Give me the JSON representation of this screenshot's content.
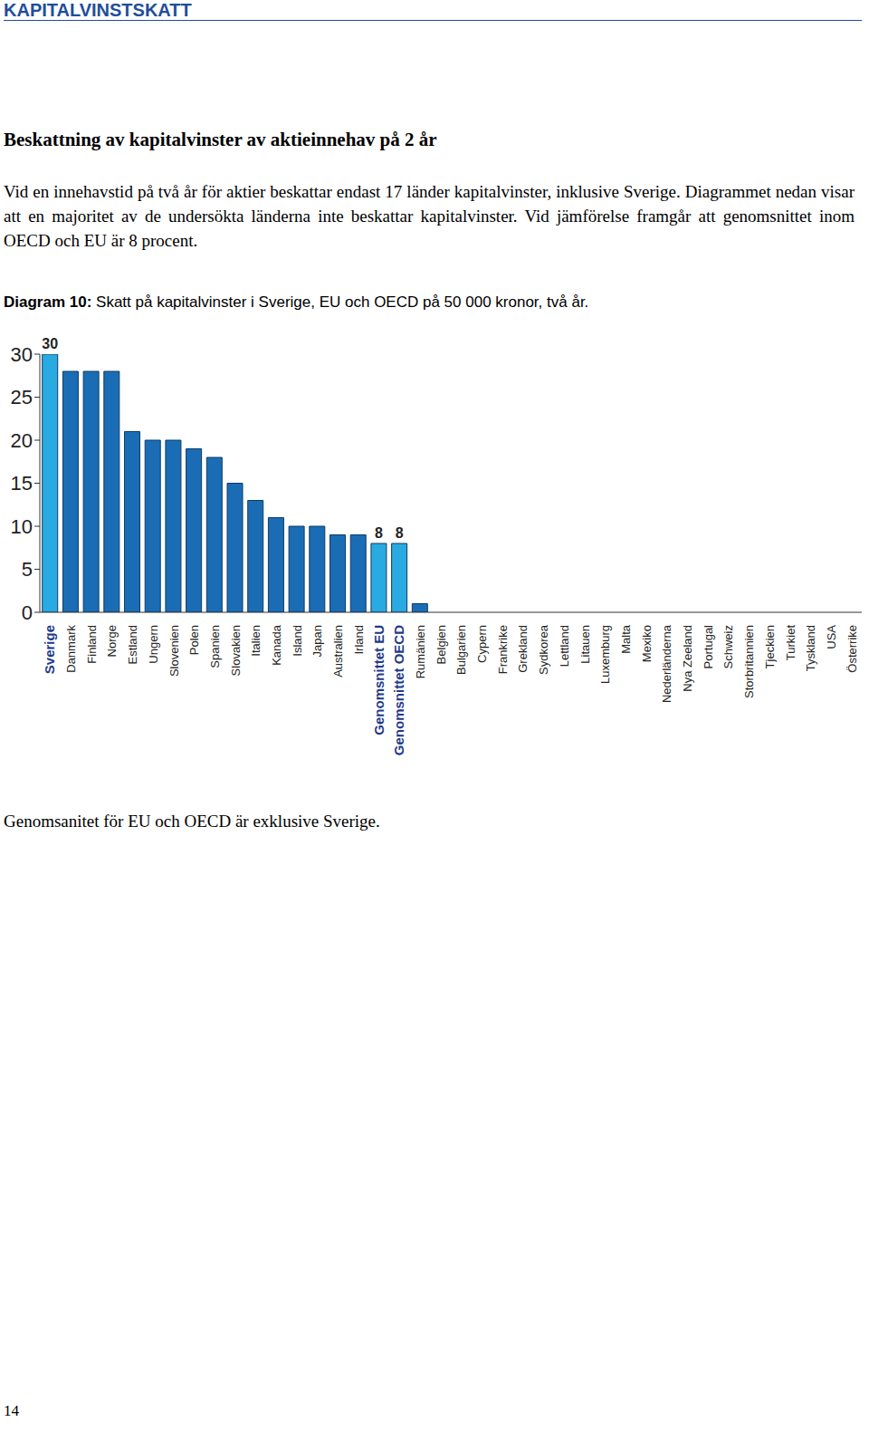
{
  "header": "KAPITALVINSTSKATT",
  "title": "Beskattning av kapitalvinster av aktieinnehav på 2 år",
  "paragraph": "Vid en innehavstid på två år för aktier beskattar endast 17 länder kapitalvinster, inklusive Sverige. Diagrammet nedan visar att en majoritet av de undersökta länderna inte beskattar kapitalvinster. Vid jämförelse framgår att genomsnittet inom OECD och EU är 8 procent.",
  "caption_label": "Diagram 10:",
  "caption_text": "Skatt på kapitalvinster i Sverige, EU och OECD på 50 000 kronor, två år.",
  "chart_data": {
    "type": "bar",
    "categories": [
      "Sverige",
      "Danmark",
      "Finland",
      "Norge",
      "Estland",
      "Ungern",
      "Slovenien",
      "Polen",
      "Spanien",
      "Slovakien",
      "Italien",
      "Kanada",
      "Island",
      "Japan",
      "Australien",
      "Irland",
      "Genomsnittet EU",
      "Genomsnittet OECD",
      "Rumänien",
      "Belgien",
      "Bulgarien",
      "Cypern",
      "Frankrike",
      "Grekland",
      "Sydkorea",
      "Lettland",
      "Litauen",
      "Luxemburg",
      "Malta",
      "Mexiko",
      "Nederländerna",
      "Nya Zeeland",
      "Portugal",
      "Schweiz",
      "Storbritannien",
      "Tjeckien",
      "Turkiet",
      "Tyskland",
      "USA",
      "Österrike"
    ],
    "values": [
      30,
      28,
      28,
      28,
      21,
      20,
      20,
      19,
      18,
      15,
      13,
      11,
      10,
      10,
      9,
      9,
      8,
      8,
      1,
      0,
      0,
      0,
      0,
      0,
      0,
      0,
      0,
      0,
      0,
      0,
      0,
      0,
      0,
      0,
      0,
      0,
      0,
      0,
      0,
      0
    ],
    "value_labels": [
      "30",
      null,
      null,
      null,
      null,
      null,
      null,
      null,
      null,
      null,
      null,
      null,
      null,
      null,
      null,
      null,
      "8",
      "8",
      null,
      null,
      null,
      null,
      null,
      null,
      null,
      null,
      null,
      null,
      null,
      null,
      null,
      null,
      null,
      null,
      null,
      null,
      null,
      null,
      null,
      null
    ],
    "colors": [
      "#29aae1",
      "#1a6db4",
      "#1a6db4",
      "#1a6db4",
      "#1a6db4",
      "#1a6db4",
      "#1a6db4",
      "#1a6db4",
      "#1a6db4",
      "#1a6db4",
      "#1a6db4",
      "#1a6db4",
      "#1a6db4",
      "#1a6db4",
      "#1a6db4",
      "#1a6db4",
      "#29aae1",
      "#29aae1",
      "#1a6db4",
      "#1a6db4",
      "#1a6db4",
      "#1a6db4",
      "#1a6db4",
      "#1a6db4",
      "#1a6db4",
      "#1a6db4",
      "#1a6db4",
      "#1a6db4",
      "#1a6db4",
      "#1a6db4",
      "#1a6db4",
      "#1a6db4",
      "#1a6db4",
      "#1a6db4",
      "#1a6db4",
      "#1a6db4",
      "#1a6db4",
      "#1a6db4",
      "#1a6db4",
      "#1a6db4"
    ],
    "ylim": [
      0,
      30
    ],
    "yticks": [
      0,
      5,
      10,
      15,
      20,
      25,
      30
    ],
    "grid": false
  },
  "footnote": "Genomsanitet för EU och OECD är exklusive Sverige.",
  "page_number": "14"
}
